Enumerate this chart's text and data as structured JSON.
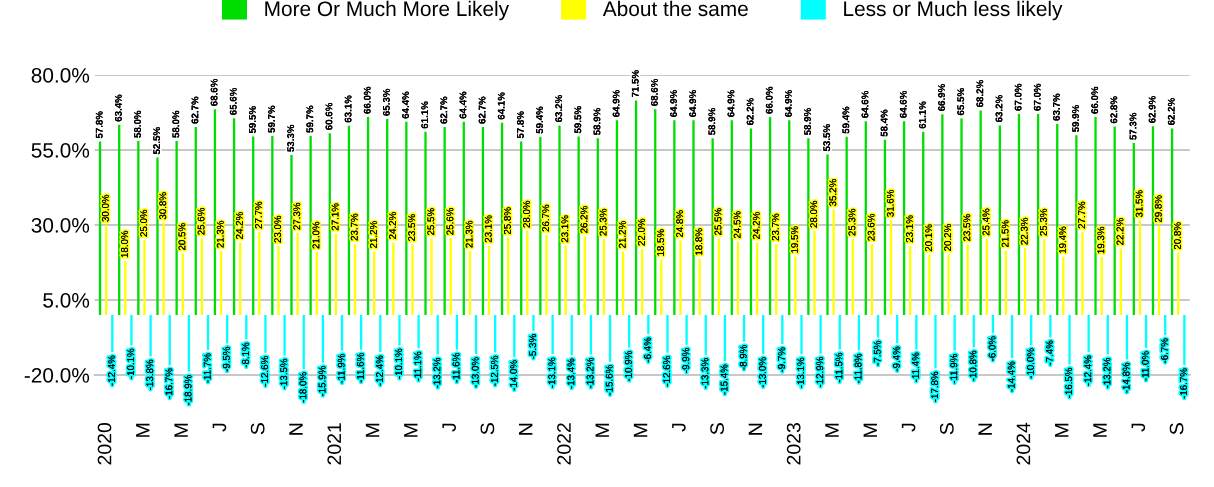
{
  "chart_data": {
    "type": "bar",
    "categories": [
      "2020",
      null,
      "M",
      null,
      "M",
      null,
      "J",
      null,
      "S",
      null,
      "N",
      null,
      "2021",
      null,
      "M",
      null,
      "M",
      null,
      "J",
      null,
      "S",
      null,
      "N",
      null,
      "2022",
      null,
      "M",
      null,
      "M",
      null,
      "J",
      null,
      "S",
      null,
      "N",
      null,
      "2023",
      null,
      "M",
      null,
      "M",
      null,
      "J",
      null,
      "S",
      null,
      "N",
      null,
      "2024",
      null,
      "M",
      null,
      "M",
      null,
      "J",
      null,
      "S"
    ],
    "series": [
      {
        "name": "More Or Much More Likely",
        "color": "#00dd00",
        "values": [
          57.8,
          63.4,
          58.0,
          52.5,
          58.0,
          62.7,
          68.6,
          65.6,
          59.5,
          59.7,
          53.3,
          59.7,
          60.6,
          63.1,
          66.0,
          65.3,
          64.4,
          61.1,
          62.7,
          64.4,
          62.7,
          64.1,
          57.8,
          59.4,
          63.2,
          59.5,
          58.9,
          64.9,
          71.5,
          68.6,
          64.9,
          64.9,
          58.9,
          64.9,
          62.2,
          66.0,
          64.9,
          58.9,
          53.5,
          59.4,
          64.6,
          58.4,
          64.6,
          61.1,
          66.9,
          65.5,
          68.2,
          63.2,
          67.0,
          67.0,
          63.7,
          59.9,
          66.0,
          62.8,
          57.3,
          62.9,
          62.2
        ],
        "value_labels": [
          "57.8%",
          "63.4%",
          "58.0%",
          "52.5%",
          "58.0%",
          "62.7%",
          "68.6%",
          "65.6%",
          "59.5%",
          "59.7%",
          "53.3%",
          "59.7%",
          "60.6%",
          "63.1%",
          "66.0%",
          "65.3%",
          "64.4%",
          "61.1%",
          "62.7%",
          "64.4%",
          "62.7%",
          "64.1%",
          "57.8%",
          "59.4%",
          "63.2%",
          "59.5%",
          "58.9%",
          "64.9%",
          "71.5%",
          "68.6%",
          "64.9%",
          "64.9%",
          "58.9%",
          "64.9%",
          "62.2%",
          "66.0%",
          "64.9%",
          "58.9%",
          "53.5%",
          "59.4%",
          "64.6%",
          "58.4%",
          "64.6%",
          "61.1%",
          "66.9%",
          "65.5%",
          "68.2%",
          "63.2%",
          "67.0%",
          "67.0%",
          "63.7%",
          "59.9%",
          "66.0%",
          "62.8%",
          "57.3%",
          "62.9%",
          "62.2%"
        ]
      },
      {
        "name": "About the same",
        "color": "#ffff00",
        "values": [
          30.0,
          18.0,
          25.0,
          30.8,
          20.5,
          25.6,
          21.3,
          24.2,
          27.7,
          23.0,
          27.3,
          21.0,
          27.1,
          23.7,
          21.2,
          24.2,
          23.5,
          25.5,
          25.6,
          21.3,
          23.1,
          25.8,
          28.0,
          26.7,
          23.1,
          26.2,
          25.3,
          21.2,
          22.0,
          18.5,
          24.8,
          18.8,
          25.5,
          24.5,
          24.2,
          23.7,
          19.5,
          28.0,
          35.2,
          25.3,
          23.6,
          31.6,
          23.1,
          20.1,
          20.2,
          23.5,
          25.4,
          21.5,
          22.3,
          25.3,
          19.4,
          27.7,
          19.3,
          22.2,
          31.5,
          29.8,
          20.8
        ],
        "value_labels": [
          "30.0%",
          "18.0%",
          "25.0%",
          "30.8%",
          "20.5%",
          "25.6%",
          "21.3%",
          "24.2%",
          "27.7%",
          "23.0%",
          "27.3%",
          "21.0%",
          "27.1%",
          "23.7%",
          "21.2%",
          "24.2%",
          "23.5%",
          "25.5%",
          "25.6%",
          "21.3%",
          "23.1%",
          "25.8%",
          "28.0%",
          "26.7%",
          "23.1%",
          "26.2%",
          "25.3%",
          "21.2%",
          "22.0%",
          "18.5%",
          "24.8%",
          "18.8%",
          "25.5%",
          "24.5%",
          "24.2%",
          "23.7%",
          "19.5%",
          "28.0%",
          "35.2%",
          "25.3%",
          "23.6%",
          "31.6%",
          "23.1%",
          "20.1%",
          "20.2%",
          "23.5%",
          "25.4%",
          "21.5%",
          "22.3%",
          "25.3%",
          "19.4%",
          "27.7%",
          "19.3%",
          "22.2%",
          "31.5%",
          "29.8%",
          "20.8%"
        ]
      },
      {
        "name": "Less or Much less likely",
        "color": "#00ffff",
        "values": [
          -12.4,
          -10.1,
          -13.8,
          -16.7,
          -18.9,
          -11.7,
          -9.5,
          -8.1,
          -12.6,
          -13.5,
          -18.0,
          -15.9,
          -11.9,
          -11.6,
          -12.4,
          -10.1,
          -11.1,
          -13.2,
          -11.6,
          -13.0,
          -12.5,
          -14.0,
          -5.3,
          -13.1,
          -13.4,
          -13.2,
          -15.6,
          -10.9,
          -6.4,
          -12.6,
          -9.9,
          -13.3,
          -15.4,
          -8.9,
          -13.0,
          -9.7,
          -13.1,
          -12.9,
          -11.5,
          -11.8,
          -7.5,
          -9.4,
          -11.4,
          -17.8,
          -11.9,
          -10.8,
          -6.0,
          -14.4,
          -10.0,
          -7.4,
          -16.5,
          -12.4,
          -13.2,
          -14.8,
          -11.0,
          -6.7,
          -16.7
        ],
        "value_labels": [
          "-12.4%",
          "-10.1%",
          "-13.8%",
          "-16.7%",
          "-18.9%",
          "-11.7%",
          "-9.5%",
          "-8.1%",
          "-12.6%",
          "-13.5%",
          "-18.0%",
          "-15.9%",
          "-11.9%",
          "-11.6%",
          "-12.4%",
          "-10.1%",
          "-11.1%",
          "-13.2%",
          "-11.6%",
          "-13.0%",
          "-12.5%",
          "-14.0%",
          "-5.3%",
          "-13.1%",
          "-13.4%",
          "-13.2%",
          "-15.6%",
          "-10.9%",
          "-6.4%",
          "-12.6%",
          "-9.9%",
          "-13.3%",
          "-15.4%",
          "-8.9%",
          "-13.0%",
          "-9.7%",
          "-13.1%",
          "-12.9%",
          "-11.5%",
          "-11.8%",
          "-7.5%",
          "-9.4%",
          "-11.4%",
          "-17.8%",
          "-11.9%",
          "-10.8%",
          "-6.0%",
          "-14.4%",
          "-10.0%",
          "-7.4%",
          "-16.5%",
          "-12.4%",
          "-13.2%",
          "-14.8%",
          "-11.0%",
          "-6.7%",
          "-16.7%"
        ]
      }
    ],
    "ylim": [
      -20,
      80
    ],
    "yticks": [
      {
        "value": -20,
        "label": "-20.0%"
      },
      {
        "value": 5,
        "label": "5.0%"
      },
      {
        "value": 30,
        "label": "30.0%"
      },
      {
        "value": 55,
        "label": "55.0%"
      },
      {
        "value": 80,
        "label": "80.0%"
      }
    ],
    "grid": "y",
    "legend": "top"
  }
}
